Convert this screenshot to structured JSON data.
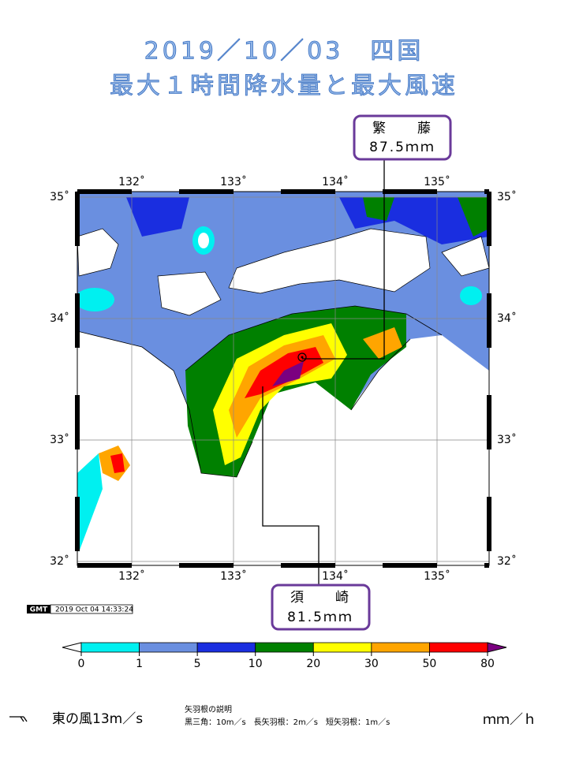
{
  "title": [
    "2019／10／03　四国",
    "最大１時間降水量と最大風速"
  ],
  "callouts": [
    {
      "station": "繁　　藤",
      "value": "87.5ｍｍ"
    },
    {
      "station": "須　　崎",
      "value": "81.5ｍｍ"
    }
  ],
  "map": {
    "lon_ticks": [
      {
        "value": 132,
        "label": "132˚"
      },
      {
        "value": 133,
        "label": "133˚"
      },
      {
        "value": 134,
        "label": "134˚"
      },
      {
        "value": 135,
        "label": "135˚"
      }
    ],
    "lat_ticks": [
      {
        "value": 35,
        "label": "35˚"
      },
      {
        "value": 34,
        "label": "34˚"
      },
      {
        "value": 33,
        "label": "33˚"
      },
      {
        "value": 32,
        "label": "32˚"
      }
    ]
  },
  "gmt": {
    "logo": "GMT",
    "timestamp": "2019 Oct 04 14:33:24"
  },
  "colorbar": {
    "bounds": [
      0,
      1,
      5,
      10,
      20,
      30,
      50,
      80
    ],
    "colors": [
      "#00f0f0",
      "#6a8fe0",
      "#1a2ee0",
      "#008000",
      "#ffff00",
      "#ffa500",
      "#ff0000"
    ],
    "under_color": "#ffffff",
    "over_color": "#7b0080",
    "unit": "ｍｍ／ｈ"
  },
  "legend": {
    "wind": "東の風13m／s",
    "heading": "矢羽根の説明",
    "description": "黒三角：10m／s　長矢羽根：2m／s　短矢羽根：1m／s"
  }
}
